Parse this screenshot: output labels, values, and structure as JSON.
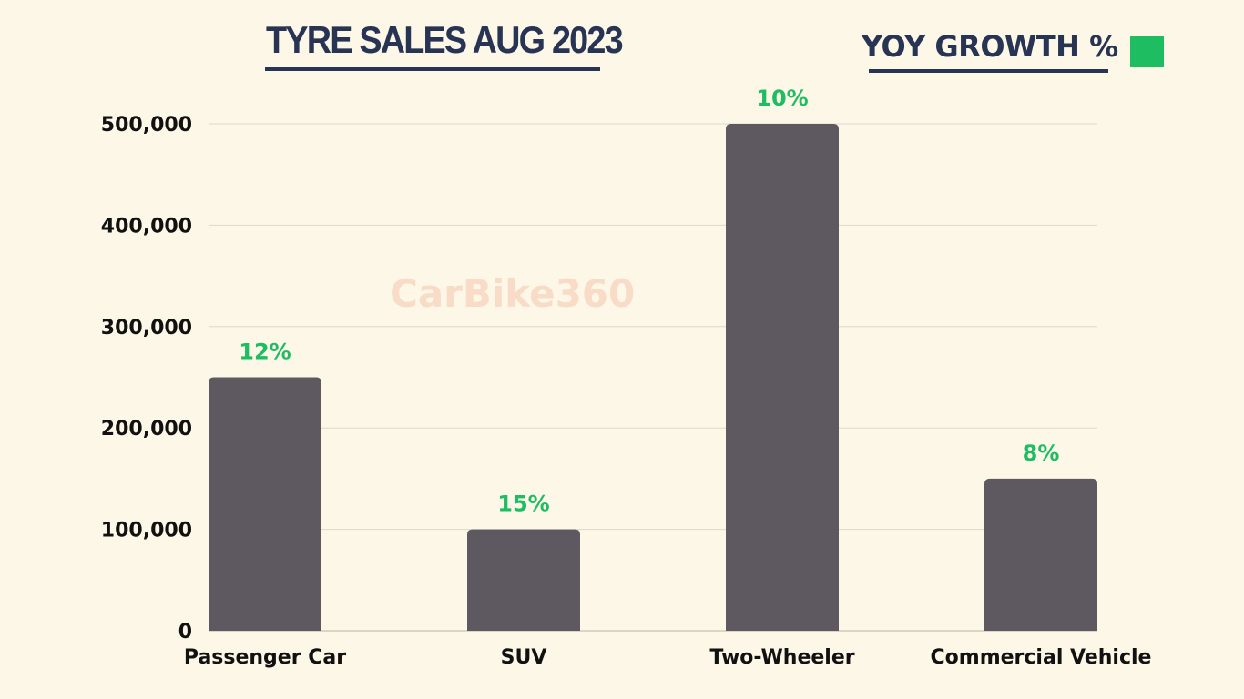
{
  "title": "TYRE SALES AUG 2023",
  "legend": {
    "label": "YOY GROWTH %",
    "color": "#1fbd62"
  },
  "watermark": "CarBike360",
  "colors": {
    "background": "#fdf7e7",
    "bar": "#5e5960",
    "label": "#1fbd62",
    "title": "#283454",
    "grid": "#dcd9cc"
  },
  "chart_data": {
    "type": "bar",
    "title": "TYRE SALES AUG 2023",
    "categories": [
      "Passenger Car",
      "SUV",
      "Two-Wheeler",
      "Commercial Vehicle"
    ],
    "values": [
      250000,
      100000,
      500000,
      150000
    ],
    "data_labels": [
      "12%",
      "15%",
      "10%",
      "8%"
    ],
    "ylim": [
      0,
      500000
    ],
    "yticks": [
      0,
      100000,
      200000,
      300000,
      400000,
      500000
    ],
    "ytick_labels": [
      "0",
      "100,000",
      "200,000",
      "300,000",
      "400,000",
      "500,000"
    ],
    "xlabel": "",
    "ylabel": "",
    "grid": true,
    "legend_position": "top-right"
  }
}
